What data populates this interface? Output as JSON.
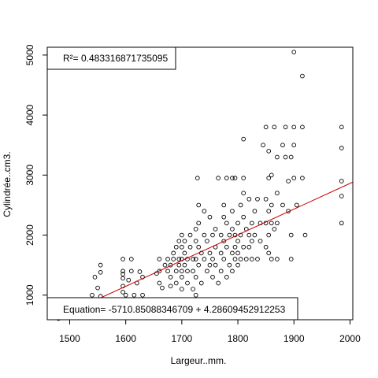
{
  "chart_data": {
    "type": "scatter",
    "xlabel": "Largeur..mm.",
    "ylabel": "Cylindrée..cm3.",
    "xlim": [
      1460,
      2005
    ],
    "ylim": [
      590,
      5130
    ],
    "x_ticks": [
      "1500",
      "1600",
      "1700",
      "1800",
      "1900",
      "2000"
    ],
    "x_tick_values": [
      1500,
      1600,
      1700,
      1800,
      1900,
      2000
    ],
    "y_ticks": [
      "1000",
      "2000",
      "3000",
      "4000",
      "5000"
    ],
    "y_tick_values": [
      1000,
      2000,
      3000,
      4000,
      5000
    ],
    "grid": false,
    "regression": {
      "r2_label": "R²= 0.483316871735095",
      "equation_label": "Equation= -5710.85088346709 + 4.28609452912253",
      "intercept": -5710.85088346709,
      "slope": 4.28609452912253,
      "color": "#cc0000"
    },
    "points": [
      [
        1475,
        850
      ],
      [
        1480,
        620
      ],
      [
        1480,
        610
      ],
      [
        1495,
        800
      ],
      [
        1540,
        1000
      ],
      [
        1545,
        1300
      ],
      [
        1550,
        1120
      ],
      [
        1555,
        1500
      ],
      [
        1555,
        1380
      ],
      [
        1555,
        980
      ],
      [
        1595,
        1600
      ],
      [
        1595,
        1400
      ],
      [
        1595,
        1350
      ],
      [
        1595,
        1280
      ],
      [
        1595,
        1150
      ],
      [
        1595,
        1050
      ],
      [
        1600,
        1000
      ],
      [
        1605,
        1250
      ],
      [
        1610,
        1400
      ],
      [
        1610,
        1600
      ],
      [
        1615,
        1000
      ],
      [
        1620,
        1200
      ],
      [
        1625,
        1390
      ],
      [
        1630,
        1300
      ],
      [
        1630,
        1000
      ],
      [
        1655,
        1360
      ],
      [
        1660,
        1600
      ],
      [
        1660,
        1400
      ],
      [
        1660,
        1200
      ],
      [
        1665,
        1120
      ],
      [
        1670,
        1500
      ],
      [
        1675,
        1400
      ],
      [
        1675,
        1600
      ],
      [
        1680,
        1500
      ],
      [
        1680,
        1300
      ],
      [
        1680,
        1150
      ],
      [
        1685,
        1700
      ],
      [
        1685,
        1600
      ],
      [
        1690,
        1800
      ],
      [
        1690,
        1400
      ],
      [
        1690,
        1200
      ],
      [
        1695,
        1900
      ],
      [
        1695,
        1600
      ],
      [
        1695,
        1500
      ],
      [
        1700,
        2000
      ],
      [
        1700,
        1800
      ],
      [
        1700,
        1600
      ],
      [
        1700,
        1400
      ],
      [
        1700,
        1300
      ],
      [
        1700,
        1100
      ],
      [
        1705,
        1700
      ],
      [
        1705,
        1500
      ],
      [
        1705,
        1900
      ],
      [
        1710,
        1600
      ],
      [
        1710,
        1400
      ],
      [
        1710,
        1200
      ],
      [
        1715,
        2000
      ],
      [
        1715,
        1800
      ],
      [
        1720,
        1600
      ],
      [
        1720,
        1400
      ],
      [
        1720,
        1100
      ],
      [
        1725,
        2100
      ],
      [
        1725,
        1900
      ],
      [
        1725,
        1600
      ],
      [
        1725,
        1300
      ],
      [
        1725,
        1000
      ],
      [
        1728,
        2950
      ],
      [
        1730,
        2500
      ],
      [
        1730,
        2200
      ],
      [
        1730,
        1800
      ],
      [
        1730,
        1500
      ],
      [
        1735,
        1700
      ],
      [
        1735,
        1200
      ],
      [
        1740,
        2000
      ],
      [
        1740,
        2400
      ],
      [
        1740,
        1600
      ],
      [
        1745,
        1900
      ],
      [
        1745,
        1400
      ],
      [
        1750,
        1700
      ],
      [
        1750,
        2300
      ],
      [
        1750,
        1500
      ],
      [
        1755,
        2000
      ],
      [
        1755,
        1600
      ],
      [
        1755,
        1300
      ],
      [
        1760,
        2100
      ],
      [
        1760,
        1800
      ],
      [
        1760,
        1500
      ],
      [
        1765,
        1200
      ],
      [
        1765,
        2950
      ],
      [
        1770,
        2000
      ],
      [
        1770,
        1700
      ],
      [
        1770,
        1400
      ],
      [
        1775,
        2500
      ],
      [
        1775,
        2300
      ],
      [
        1775,
        1900
      ],
      [
        1775,
        1600
      ],
      [
        1780,
        2950
      ],
      [
        1780,
        2200
      ],
      [
        1780,
        1800
      ],
      [
        1780,
        1300
      ],
      [
        1785,
        2000
      ],
      [
        1785,
        1500
      ],
      [
        1790,
        2400
      ],
      [
        1790,
        2950
      ],
      [
        1790,
        2100
      ],
      [
        1790,
        1700
      ],
      [
        1790,
        1400
      ],
      [
        1795,
        2000
      ],
      [
        1795,
        1800
      ],
      [
        1795,
        1600
      ],
      [
        1795,
        2950
      ],
      [
        1800,
        2200
      ],
      [
        1800,
        1900
      ],
      [
        1800,
        1700
      ],
      [
        1800,
        1500
      ],
      [
        1805,
        2500
      ],
      [
        1805,
        2000
      ],
      [
        1805,
        1600
      ],
      [
        1810,
        3600
      ],
      [
        1810,
        2950
      ],
      [
        1810,
        2700
      ],
      [
        1810,
        2300
      ],
      [
        1810,
        1800
      ],
      [
        1815,
        2100
      ],
      [
        1815,
        1600
      ],
      [
        1820,
        2600
      ],
      [
        1820,
        2000
      ],
      [
        1820,
        1800
      ],
      [
        1825,
        2200
      ],
      [
        1825,
        1900
      ],
      [
        1825,
        1600
      ],
      [
        1830,
        2400
      ],
      [
        1830,
        2000
      ],
      [
        1835,
        2600
      ],
      [
        1835,
        1600
      ],
      [
        1840,
        2200
      ],
      [
        1840,
        1900
      ],
      [
        1845,
        3500
      ],
      [
        1850,
        3800
      ],
      [
        1850,
        2600
      ],
      [
        1850,
        2200
      ],
      [
        1850,
        1800
      ],
      [
        1855,
        3400
      ],
      [
        1855,
        2950
      ],
      [
        1855,
        2400
      ],
      [
        1855,
        2000
      ],
      [
        1855,
        1700
      ],
      [
        1860,
        3000
      ],
      [
        1860,
        2500
      ],
      [
        1860,
        2200
      ],
      [
        1860,
        1600
      ],
      [
        1865,
        3800
      ],
      [
        1865,
        2100
      ],
      [
        1870,
        3300
      ],
      [
        1870,
        2700
      ],
      [
        1870,
        2200
      ],
      [
        1870,
        1600
      ],
      [
        1880,
        3500
      ],
      [
        1880,
        2500
      ],
      [
        1885,
        3800
      ],
      [
        1885,
        3300
      ],
      [
        1890,
        2900
      ],
      [
        1890,
        2400
      ],
      [
        1895,
        3300
      ],
      [
        1895,
        2000
      ],
      [
        1895,
        1600
      ],
      [
        1900,
        5050
      ],
      [
        1900,
        3800
      ],
      [
        1900,
        3500
      ],
      [
        1900,
        2950
      ],
      [
        1905,
        2500
      ],
      [
        1915,
        4650
      ],
      [
        1915,
        3800
      ],
      [
        1915,
        2950
      ],
      [
        1920,
        2000
      ],
      [
        1985,
        3800
      ],
      [
        1985,
        3450
      ],
      [
        1985,
        2900
      ],
      [
        1985,
        2650
      ],
      [
        1985,
        2200
      ]
    ]
  }
}
